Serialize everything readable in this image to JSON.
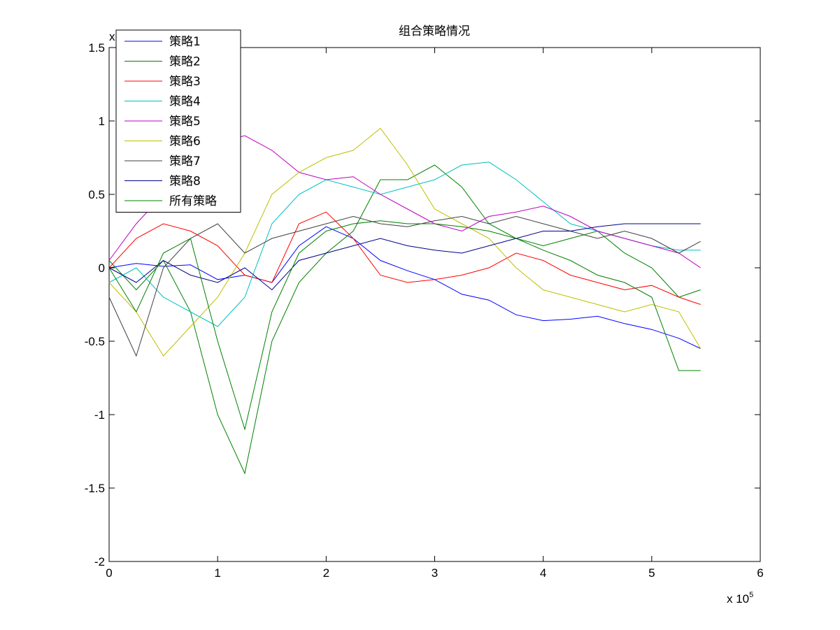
{
  "chart_data": {
    "type": "line",
    "title": "组合策略情况",
    "xlabel": "",
    "ylabel": "",
    "x_exponent_label": "x 10",
    "x_exponent_power": "5",
    "y_exponent_label": "x 10",
    "y_exponent_power": "4",
    "xlim": [
      0,
      6
    ],
    "ylim": [
      -2,
      1.5
    ],
    "x_ticks": [
      "0",
      "1",
      "2",
      "3",
      "4",
      "5",
      "6"
    ],
    "y_ticks": [
      "1.5",
      "1",
      "0.5",
      "0",
      "-0.5",
      "-1",
      "-1.5",
      "-2"
    ],
    "grid": false,
    "legend_position": "top-left",
    "x": [
      0,
      0.25,
      0.5,
      0.75,
      1,
      1.25,
      1.5,
      1.75,
      2,
      2.25,
      2.5,
      2.75,
      3,
      3.25,
      3.5,
      3.75,
      4,
      4.25,
      4.5,
      4.75,
      5,
      5.25,
      5.45
    ],
    "series": [
      {
        "name": "策略1",
        "color": "#0000ff",
        "values": [
          0.0,
          0.03,
          0.01,
          0.02,
          -0.08,
          -0.05,
          -0.1,
          0.15,
          0.28,
          0.2,
          0.05,
          -0.02,
          -0.08,
          -0.18,
          -0.22,
          -0.32,
          -0.36,
          -0.35,
          -0.33,
          -0.38,
          -0.42,
          -0.48,
          -0.55
        ]
      },
      {
        "name": "策略2",
        "color": "#008000",
        "values": [
          0.05,
          -0.15,
          0.05,
          -0.3,
          -1.0,
          -1.4,
          -0.5,
          -0.1,
          0.1,
          0.25,
          0.6,
          0.6,
          0.7,
          0.55,
          0.3,
          0.2,
          0.15,
          0.2,
          0.25,
          0.1,
          0.0,
          -0.2,
          -0.15
        ]
      },
      {
        "name": "策略3",
        "color": "#ff0000",
        "values": [
          0.0,
          0.2,
          0.3,
          0.25,
          0.15,
          -0.05,
          -0.1,
          0.3,
          0.38,
          0.2,
          -0.05,
          -0.1,
          -0.08,
          -0.05,
          0.0,
          0.1,
          0.05,
          -0.05,
          -0.1,
          -0.15,
          -0.12,
          -0.2,
          -0.25
        ]
      },
      {
        "name": "策略4",
        "color": "#00bfbf",
        "values": [
          -0.1,
          0.0,
          -0.2,
          -0.3,
          -0.4,
          -0.2,
          0.3,
          0.5,
          0.6,
          0.55,
          0.5,
          0.55,
          0.6,
          0.7,
          0.72,
          0.6,
          0.45,
          0.3,
          0.25,
          0.2,
          0.15,
          0.12,
          0.12
        ]
      },
      {
        "name": "策略5",
        "color": "#bf00bf",
        "values": [
          0.05,
          0.3,
          0.5,
          0.7,
          0.85,
          0.9,
          0.8,
          0.65,
          0.6,
          0.62,
          0.5,
          0.4,
          0.3,
          0.25,
          0.35,
          0.38,
          0.42,
          0.35,
          0.25,
          0.2,
          0.15,
          0.1,
          0.0
        ]
      },
      {
        "name": "策略6",
        "color": "#bfbf00",
        "values": [
          -0.1,
          -0.3,
          -0.6,
          -0.4,
          -0.2,
          0.1,
          0.5,
          0.65,
          0.75,
          0.8,
          0.95,
          0.7,
          0.4,
          0.3,
          0.2,
          0.0,
          -0.15,
          -0.2,
          -0.25,
          -0.3,
          -0.25,
          -0.3,
          -0.55
        ]
      },
      {
        "name": "策略7",
        "color": "#404040",
        "values": [
          -0.2,
          -0.6,
          0.0,
          0.2,
          0.3,
          0.1,
          0.2,
          0.25,
          0.3,
          0.35,
          0.3,
          0.28,
          0.32,
          0.35,
          0.3,
          0.35,
          0.3,
          0.25,
          0.2,
          0.25,
          0.2,
          0.1,
          0.18
        ]
      },
      {
        "name": "策略8",
        "color": "#00008b",
        "values": [
          0.0,
          -0.1,
          0.05,
          -0.05,
          -0.1,
          0.0,
          -0.15,
          0.05,
          0.1,
          0.15,
          0.2,
          0.15,
          0.12,
          0.1,
          0.15,
          0.2,
          0.25,
          0.25,
          0.28,
          0.3,
          0.3,
          0.3,
          0.3
        ]
      },
      {
        "name": "所有策略",
        "color": "#008000",
        "values": [
          0.0,
          -0.3,
          0.1,
          0.2,
          -0.5,
          -1.1,
          -0.3,
          0.1,
          0.25,
          0.3,
          0.32,
          0.3,
          0.3,
          0.28,
          0.25,
          0.2,
          0.12,
          0.05,
          -0.05,
          -0.1,
          -0.2,
          -0.7,
          -0.7
        ]
      }
    ]
  }
}
